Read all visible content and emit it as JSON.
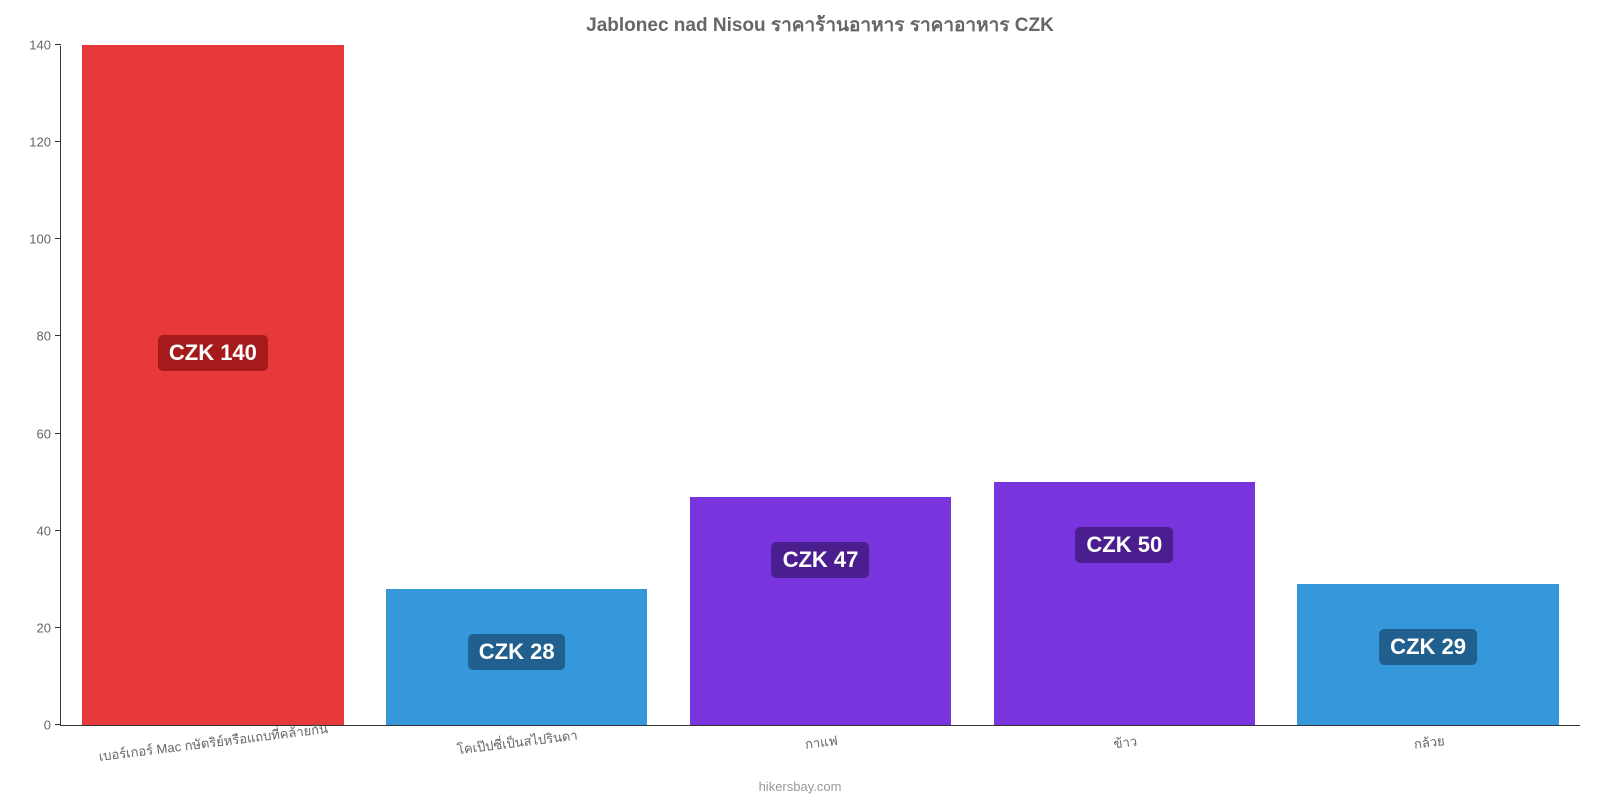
{
  "chart": {
    "type": "bar",
    "title": "Jablonec nad Nisou ราคาร้านอาหาร ราคาอาหาร CZK",
    "title_color": "#666666",
    "title_fontsize": 19,
    "background_color": "#ffffff",
    "axis_color": "#333333",
    "tick_label_color": "#666666",
    "tick_label_fontsize": 13,
    "ylim": [
      0,
      140
    ],
    "ytick_step": 20,
    "yticks": [
      0,
      20,
      40,
      60,
      80,
      100,
      120,
      140
    ],
    "bar_width": 0.86,
    "categories": [
      "เบอร์เกอร์ Mac กษัตริย์หรือแถบที่คล้ายกัน",
      "โคเป๊ปซี่เป็นสไปรินดา",
      "กาแฟ",
      "ข้าว",
      "กล้วย"
    ],
    "values": [
      140,
      28,
      47,
      50,
      29
    ],
    "bar_colors": [
      "#e8393a",
      "#3498db",
      "#7934de",
      "#7934de",
      "#3498db"
    ],
    "value_labels": [
      "CZK 140",
      "CZK 28",
      "CZK 47",
      "CZK 50",
      "CZK 29"
    ],
    "value_label_bg": [
      "#a51a1a",
      "#215f8f",
      "#4a1e8e",
      "#4a1e8e",
      "#215f8f"
    ],
    "value_label_offsets": [
      -370,
      -110,
      -110,
      -110,
      -110
    ],
    "value_label_fontsize": 22,
    "value_label_color": "#ffffff",
    "x_label_rotation_deg": -7,
    "attribution": "hikersbay.com",
    "attribution_color": "#999999"
  }
}
